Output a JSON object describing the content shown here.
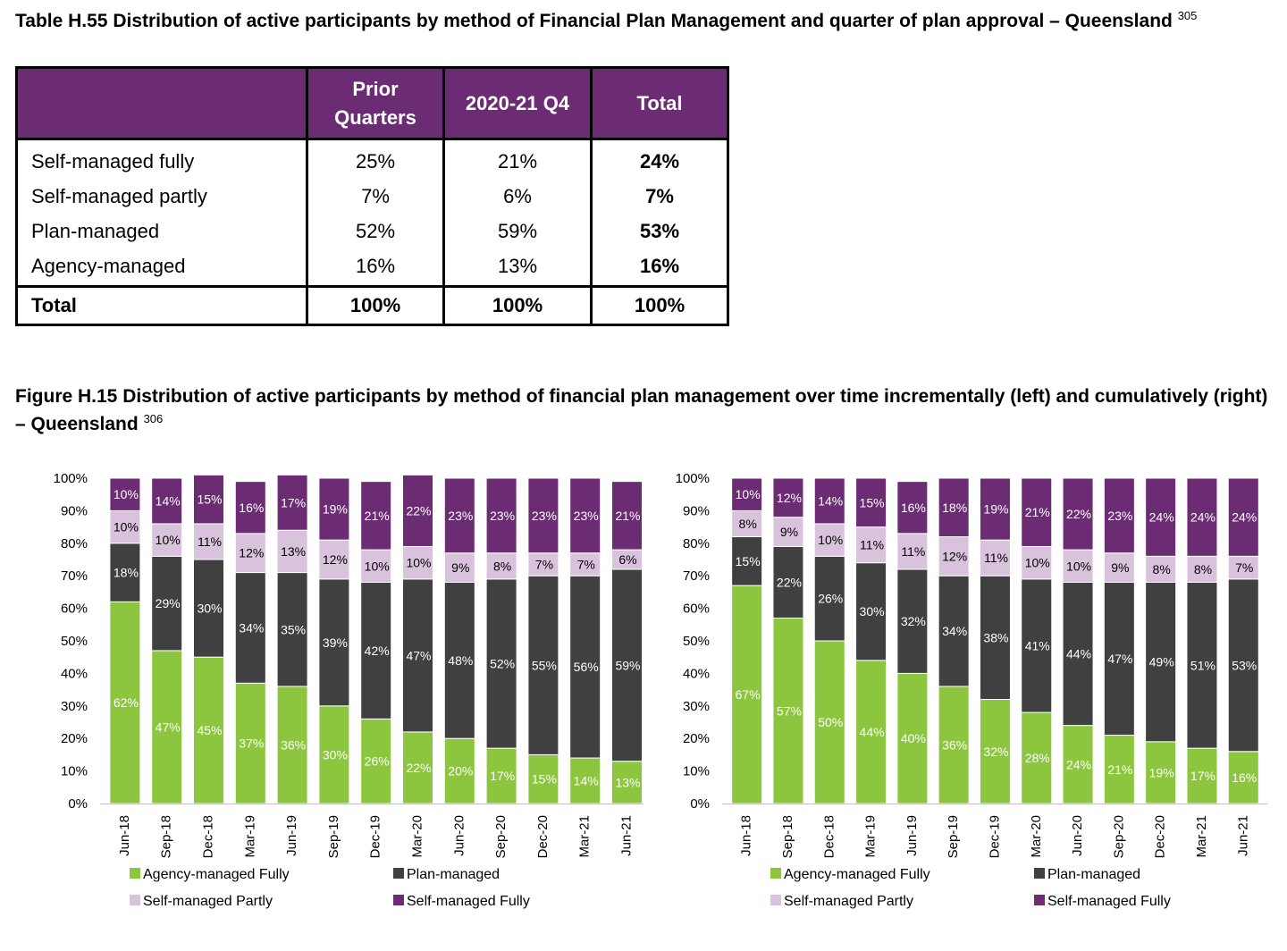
{
  "table": {
    "title": "Table H.55 Distribution of active participants by method of Financial Plan Management and quarter of plan approval – Queensland",
    "footnote": "305",
    "headers": [
      "",
      "Prior Quarters",
      "2020-21 Q4",
      "Total"
    ],
    "rows": [
      {
        "label": "Self-managed fully",
        "prior": "25%",
        "q4": "21%",
        "total": "24%"
      },
      {
        "label": "Self-managed partly",
        "prior": "7%",
        "q4": "6%",
        "total": "7%"
      },
      {
        "label": "Plan-managed",
        "prior": "52%",
        "q4": "59%",
        "total": "53%"
      },
      {
        "label": "Agency-managed",
        "prior": "16%",
        "q4": "13%",
        "total": "16%"
      }
    ],
    "total_row": {
      "label": "Total",
      "prior": "100%",
      "q4": "100%",
      "total": "100%"
    },
    "header_color": "#6b2c74"
  },
  "figure": {
    "title": "Figure H.15 Distribution of active participants by method of financial plan management over time incrementally (left) and cumulatively (right) – Queensland",
    "footnote": "306"
  },
  "chart_data": [
    {
      "type": "bar",
      "stacked": true,
      "categories": [
        "Jun-18",
        "Sep-18",
        "Dec-18",
        "Mar-19",
        "Jun-19",
        "Sep-19",
        "Dec-19",
        "Mar-20",
        "Jun-20",
        "Sep-20",
        "Dec-20",
        "Mar-21",
        "Jun-21"
      ],
      "series": [
        {
          "name": "Agency-managed Fully",
          "color": "#8cc63f",
          "values": [
            62,
            47,
            45,
            37,
            36,
            30,
            26,
            22,
            20,
            17,
            15,
            14,
            13
          ]
        },
        {
          "name": "Plan-managed",
          "color": "#404041",
          "values": [
            18,
            29,
            30,
            34,
            35,
            39,
            42,
            47,
            48,
            52,
            55,
            56,
            59
          ]
        },
        {
          "name": "Self-managed Partly",
          "color": "#d9c3dc",
          "values": [
            10,
            10,
            11,
            12,
            13,
            12,
            10,
            10,
            9,
            8,
            7,
            7,
            6
          ]
        },
        {
          "name": "Self-managed Fully",
          "color": "#6b2c74",
          "values": [
            10,
            14,
            15,
            16,
            17,
            19,
            21,
            22,
            23,
            23,
            23,
            23,
            21
          ]
        }
      ],
      "yticks": [
        "0%",
        "10%",
        "20%",
        "30%",
        "40%",
        "50%",
        "60%",
        "70%",
        "80%",
        "90%",
        "100%"
      ],
      "ylim": [
        0,
        100
      ]
    },
    {
      "type": "bar",
      "stacked": true,
      "categories": [
        "Jun-18",
        "Sep-18",
        "Dec-18",
        "Mar-19",
        "Jun-19",
        "Sep-19",
        "Dec-19",
        "Mar-20",
        "Jun-20",
        "Sep-20",
        "Dec-20",
        "Mar-21",
        "Jun-21"
      ],
      "series": [
        {
          "name": "Agency-managed Fully",
          "color": "#8cc63f",
          "values": [
            67,
            57,
            50,
            44,
            40,
            36,
            32,
            28,
            24,
            21,
            19,
            17,
            16
          ]
        },
        {
          "name": "Plan-managed",
          "color": "#404041",
          "values": [
            15,
            22,
            26,
            30,
            32,
            34,
            38,
            41,
            44,
            47,
            49,
            51,
            53
          ]
        },
        {
          "name": "Self-managed Partly",
          "color": "#d9c3dc",
          "values": [
            8,
            9,
            10,
            11,
            11,
            12,
            11,
            10,
            10,
            9,
            8,
            8,
            7
          ]
        },
        {
          "name": "Self-managed Fully",
          "color": "#6b2c74",
          "values": [
            10,
            12,
            14,
            15,
            16,
            18,
            19,
            21,
            22,
            23,
            24,
            24,
            24
          ]
        }
      ],
      "yticks": [
        "0%",
        "10%",
        "20%",
        "30%",
        "40%",
        "50%",
        "60%",
        "70%",
        "80%",
        "90%",
        "100%"
      ],
      "ylim": [
        0,
        100
      ]
    }
  ]
}
